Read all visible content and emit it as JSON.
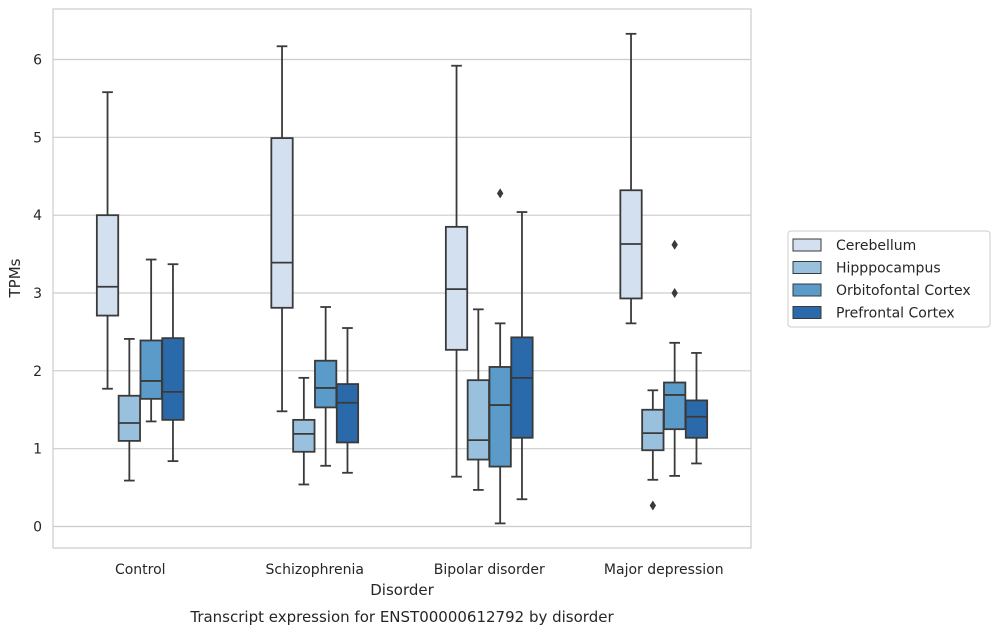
{
  "chart_data": {
    "type": "box",
    "title": "Transcript expression for ENST00000612792 by disorder",
    "xlabel": "Disorder",
    "ylabel": "TPMs",
    "ylim": [
      -0.3,
      6.65
    ],
    "yticks": [
      0,
      1,
      2,
      3,
      4,
      5,
      6
    ],
    "grid": "horizontal",
    "legend_position": "right",
    "categories": [
      "Control",
      "Schizophrenia",
      "Bipolar disorder",
      "Major depression"
    ],
    "series": [
      {
        "name": "Cerebellum",
        "color": "#d3e0ef",
        "boxes": [
          {
            "whisker_low": 1.77,
            "q1": 2.71,
            "median": 3.08,
            "q3": 4.0,
            "whisker_high": 5.58,
            "outliers": []
          },
          {
            "whisker_low": 1.48,
            "q1": 2.81,
            "median": 3.39,
            "q3": 4.99,
            "whisker_high": 6.17,
            "outliers": []
          },
          {
            "whisker_low": 0.64,
            "q1": 2.27,
            "median": 3.05,
            "q3": 3.85,
            "whisker_high": 5.92,
            "outliers": []
          },
          {
            "whisker_low": 2.61,
            "q1": 2.93,
            "median": 3.63,
            "q3": 4.32,
            "whisker_high": 6.33,
            "outliers": []
          }
        ]
      },
      {
        "name": "Hipppocampus",
        "color": "#99c0dc",
        "boxes": [
          {
            "whisker_low": 0.59,
            "q1": 1.1,
            "median": 1.33,
            "q3": 1.68,
            "whisker_high": 2.41,
            "outliers": []
          },
          {
            "whisker_low": 0.54,
            "q1": 0.96,
            "median": 1.19,
            "q3": 1.37,
            "whisker_high": 1.91,
            "outliers": []
          },
          {
            "whisker_low": 0.47,
            "q1": 0.86,
            "median": 1.11,
            "q3": 1.88,
            "whisker_high": 2.79,
            "outliers": []
          },
          {
            "whisker_low": 0.6,
            "q1": 0.98,
            "median": 1.2,
            "q3": 1.5,
            "whisker_high": 1.75,
            "outliers": [
              0.27
            ]
          }
        ]
      },
      {
        "name": "Orbitofontal Cortex",
        "color": "#5a9bc9",
        "boxes": [
          {
            "whisker_low": 1.35,
            "q1": 1.64,
            "median": 1.87,
            "q3": 2.39,
            "whisker_high": 3.43,
            "outliers": []
          },
          {
            "whisker_low": 0.78,
            "q1": 1.53,
            "median": 1.78,
            "q3": 2.13,
            "whisker_high": 2.82,
            "outliers": []
          },
          {
            "whisker_low": 0.04,
            "q1": 0.77,
            "median": 1.56,
            "q3": 2.05,
            "whisker_high": 2.61,
            "outliers": [
              4.28
            ]
          },
          {
            "whisker_low": 0.65,
            "q1": 1.25,
            "median": 1.69,
            "q3": 1.85,
            "whisker_high": 2.36,
            "outliers": [
              3.62,
              3.0
            ]
          }
        ]
      },
      {
        "name": "Prefrontal Cortex",
        "color": "#2a6aaa",
        "boxes": [
          {
            "whisker_low": 0.84,
            "q1": 1.37,
            "median": 1.73,
            "q3": 2.42,
            "whisker_high": 3.37,
            "outliers": []
          },
          {
            "whisker_low": 0.69,
            "q1": 1.08,
            "median": 1.59,
            "q3": 1.83,
            "whisker_high": 2.55,
            "outliers": []
          },
          {
            "whisker_low": 0.35,
            "q1": 1.14,
            "median": 1.91,
            "q3": 2.43,
            "whisker_high": 4.04,
            "outliers": []
          },
          {
            "whisker_low": 0.81,
            "q1": 1.14,
            "median": 1.41,
            "q3": 1.62,
            "whisker_high": 2.23,
            "outliers": []
          }
        ]
      }
    ]
  }
}
